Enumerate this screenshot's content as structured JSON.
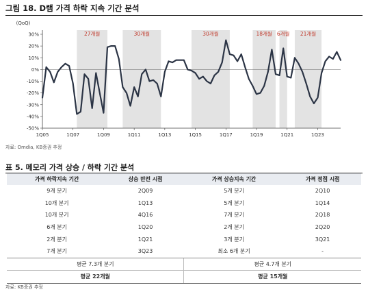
{
  "figure": {
    "title": "그림 18. D램 가격 하락 지속 기간 분석",
    "source": "자료: Omdia, KB증권 추정"
  },
  "chart_data": {
    "type": "line",
    "ylabel": "(QoQ)",
    "ylim": [
      -50,
      30
    ],
    "yticks": [
      "30%",
      "20%",
      "10%",
      "0%",
      "-10%",
      "-20%",
      "-30%",
      "-40%",
      "-50%"
    ],
    "ytick_values": [
      30,
      20,
      10,
      0,
      -10,
      -20,
      -30,
      -40,
      -50
    ],
    "xticks": [
      "1Q05",
      "1Q07",
      "1Q09",
      "1Q11",
      "1Q13",
      "1Q15",
      "1Q17",
      "1Q19",
      "1Q21",
      "1Q23"
    ],
    "xtick_index": [
      0,
      8,
      16,
      24,
      32,
      40,
      48,
      56,
      64,
      72
    ],
    "series_color": "#2b3445",
    "shade_color": "#e3e3e3",
    "label_color": "#c0392b",
    "values": [
      -24,
      2,
      -2,
      -11,
      -2,
      2,
      5,
      3,
      -12,
      -38,
      -36,
      -4,
      -8,
      -33,
      -3,
      -20,
      -37,
      19,
      20,
      20,
      9,
      -15,
      -20,
      -31,
      -15,
      -23,
      -4,
      0,
      -10,
      -9,
      -12,
      -23,
      -2,
      7,
      6,
      8,
      8,
      8,
      0,
      -1,
      -3,
      -8,
      -6,
      -10,
      -12,
      -5,
      -2,
      6,
      25,
      13,
      12,
      7,
      13,
      2,
      -8,
      -14,
      -21,
      -20,
      -14,
      -2,
      17,
      -4,
      -5,
      18,
      -6,
      -7,
      10,
      5,
      -2,
      -12,
      -23,
      -29,
      -24,
      -3,
      7,
      11,
      9,
      15,
      8
    ],
    "decline_periods": [
      {
        "label": "27개월",
        "start": 9,
        "end": 17
      },
      {
        "label": "30개월",
        "start": 21,
        "end": 31
      },
      {
        "label": "30개월",
        "start": 39,
        "end": 49
      },
      {
        "label": "18개월",
        "start": 55,
        "end": 61
      },
      {
        "label": "6개월",
        "start": 62,
        "end": 64
      },
      {
        "label": "21개월",
        "start": 66,
        "end": 73
      }
    ]
  },
  "table": {
    "title": "표 5. 메모리 가격 상승 / 하락 기간 분석",
    "headers": [
      "가격 하락지속 기간",
      "상승 반전 시점",
      "가격 상승지속 기간",
      "가격 정점 시점"
    ],
    "rows": [
      [
        "9개 분기",
        "2Q09",
        "5개 분기",
        "2Q10"
      ],
      [
        "10개 분기",
        "1Q13",
        "5개 분기",
        "1Q14"
      ],
      [
        "10개 분기",
        "4Q16",
        "7개 분기",
        "2Q18"
      ],
      [
        "6개 분기",
        "1Q20",
        "2개 분기",
        "2Q20"
      ],
      [
        "2개 분기",
        "1Q21",
        "3개 분기",
        "3Q21"
      ],
      [
        "7개 분기",
        "3Q23",
        "최소 6개 분기",
        "-"
      ]
    ],
    "avg_quarters": [
      "평균 7.3개 분기",
      "평균 4.7개 분기"
    ],
    "avg_months": [
      "평균 22개월",
      "평균 15개월"
    ],
    "source": "자료: KB증권 추정"
  }
}
